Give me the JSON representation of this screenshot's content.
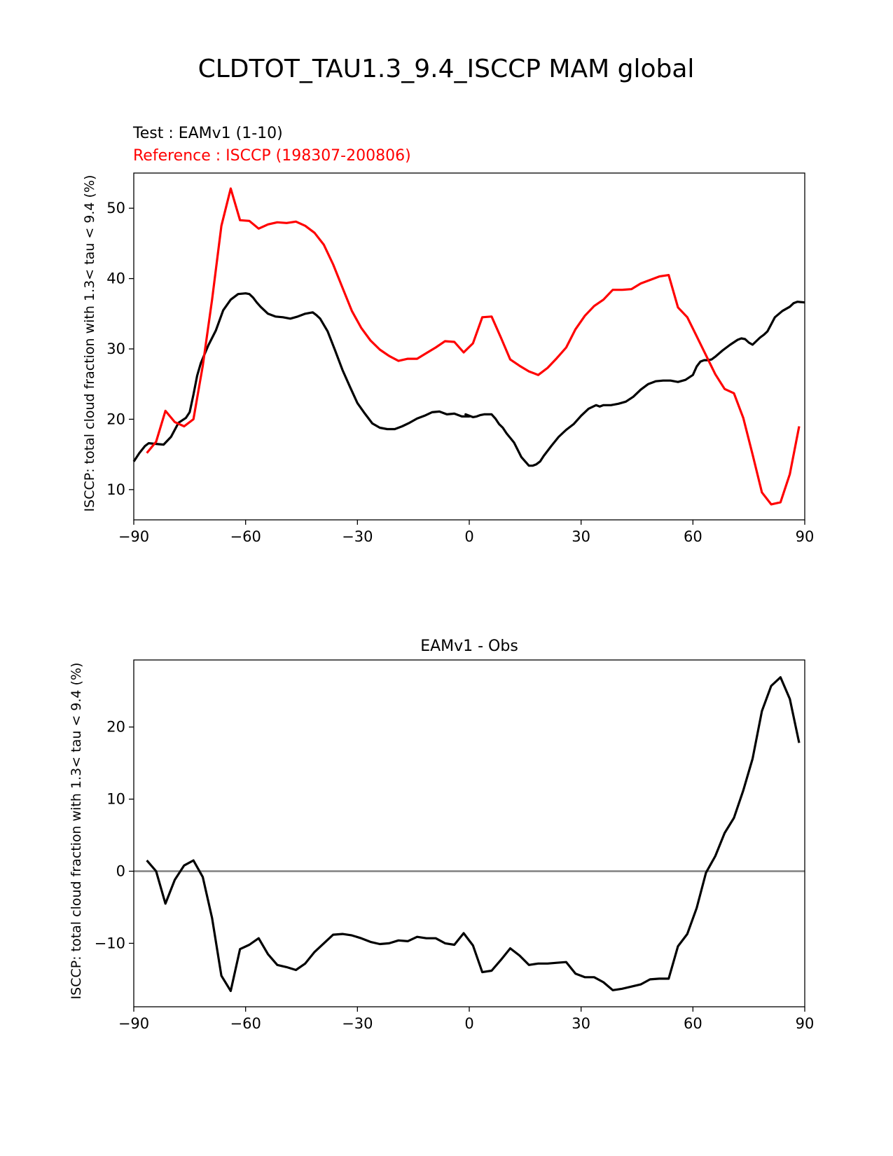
{
  "figure": {
    "title": "CLDTOT_TAU1.3_9.4_ISCCP MAM global"
  },
  "colors": {
    "test": "#000000",
    "reference": "#ff0000",
    "zero_line": "#808080",
    "axes": "#000000"
  },
  "chart_data": [
    {
      "type": "line",
      "name": "zonal-mean",
      "title": "",
      "test_label": "Test : EAMv1 (1-10)",
      "reference_label": "Reference : ISCCP (198307-200806)",
      "xlabel": "",
      "ylabel": "ISCCP: total cloud fraction with 1.3< tau < 9.4 (%)",
      "xlim": [
        -90,
        90
      ],
      "ylim": [
        5.7,
        55
      ],
      "xticks": [
        -90,
        -60,
        -30,
        0,
        30,
        60,
        90
      ],
      "xtick_labels": [
        "−90",
        "−60",
        "−30",
        "0",
        "30",
        "60",
        "90"
      ],
      "yticks": [
        10,
        20,
        30,
        40,
        50
      ],
      "ytick_labels": [
        "10",
        "20",
        "30",
        "40",
        "50"
      ],
      "series": [
        {
          "name": "EAMv1 (1-10)",
          "color": "#000000",
          "x": [
            -90,
            -88.5,
            -87,
            -86,
            -84,
            -82,
            -80,
            -78,
            -76,
            -75,
            -74,
            -73,
            -72,
            -70,
            -68,
            -66,
            -64,
            -62,
            -60,
            -59,
            -58,
            -57,
            -56,
            -54,
            -52,
            -50,
            -48,
            -46,
            -44,
            -42,
            -41,
            -40,
            -38,
            -36,
            -34,
            -32,
            -30,
            -28,
            -26,
            -24,
            -22,
            -20,
            -18,
            -16,
            -14,
            -12,
            -10,
            -8,
            -7,
            -6,
            -4,
            -2,
            0,
            -1,
            1,
            2,
            3,
            4,
            6,
            7,
            8,
            9,
            10,
            12,
            14,
            16,
            17,
            18,
            19,
            20,
            22,
            24,
            26,
            28,
            30,
            32,
            34,
            35,
            36,
            38,
            40,
            42,
            44,
            46,
            48,
            50,
            52,
            54,
            56,
            58,
            60,
            61,
            62,
            63,
            64,
            65,
            66,
            68,
            70,
            72,
            73,
            74,
            75,
            76,
            78,
            79,
            80,
            81,
            82,
            84,
            86,
            87,
            88,
            90
          ],
          "values": [
            14,
            15.2,
            16.2,
            16.6,
            16.5,
            16.4,
            17.5,
            19.5,
            20.2,
            21,
            23.5,
            26.2,
            28,
            30.5,
            32.6,
            35.5,
            37,
            37.8,
            37.9,
            37.8,
            37.3,
            36.6,
            36,
            35,
            34.6,
            34.5,
            34.3,
            34.6,
            35,
            35.2,
            34.8,
            34.3,
            32.5,
            29.8,
            27,
            24.6,
            22.3,
            20.8,
            19.4,
            18.8,
            18.6,
            18.6,
            19,
            19.5,
            20.1,
            20.5,
            21,
            21.1,
            20.9,
            20.7,
            20.8,
            20.4,
            20.4,
            20.7,
            20.3,
            20.4,
            20.6,
            20.7,
            20.7,
            20.1,
            19.3,
            18.8,
            18,
            16.7,
            14.6,
            13.4,
            13.4,
            13.6,
            14,
            14.8,
            16.2,
            17.5,
            18.5,
            19.3,
            20.5,
            21.5,
            22,
            21.8,
            22,
            22,
            22.2,
            22.5,
            23.2,
            24.2,
            25,
            25.4,
            25.5,
            25.5,
            25.3,
            25.6,
            26.3,
            27.5,
            28.2,
            28.4,
            28.4,
            28.5,
            28.9,
            29.8,
            30.6,
            31.3,
            31.5,
            31.4,
            30.9,
            30.6,
            31.6,
            32,
            32.5,
            33.5,
            34.5,
            35.4,
            36,
            36.5,
            36.7,
            36.6
          ]
        },
        {
          "name": "ISCCP (198307-200806)",
          "color": "#ff0000",
          "x": [
            -86.5,
            -84,
            -81.5,
            -79,
            -76.5,
            -74,
            -71.5,
            -69,
            -66.5,
            -64,
            -61.5,
            -59,
            -56.5,
            -54,
            -51.5,
            -49,
            -46.5,
            -44,
            -41.5,
            -39,
            -36.5,
            -34,
            -31.5,
            -29,
            -26.5,
            -24,
            -21.5,
            -19,
            -16.5,
            -14,
            -11.5,
            -9,
            -6.5,
            -4,
            -1.5,
            1,
            3.5,
            6,
            8.5,
            11,
            13.5,
            16,
            18.5,
            21,
            23.5,
            26,
            28.5,
            31,
            33.5,
            36,
            38.5,
            41,
            43.5,
            46,
            48.5,
            51,
            53.5,
            56,
            58.5,
            61,
            63.5,
            66,
            68.5,
            71,
            73.5,
            76,
            78.5,
            81,
            83.5,
            86,
            88.5
          ],
          "values": [
            15.2,
            16.8,
            21.2,
            19.6,
            19,
            20,
            27.6,
            37,
            47.5,
            52.8,
            48.3,
            48.2,
            47.1,
            47.7,
            48,
            47.9,
            48.1,
            47.5,
            46.5,
            44.8,
            42,
            38.7,
            35.4,
            33,
            31.2,
            29.9,
            29,
            28.3,
            28.6,
            28.6,
            29.4,
            30.2,
            31.1,
            31,
            29.5,
            30.8,
            34.5,
            34.6,
            31.6,
            28.5,
            27.6,
            26.8,
            26.3,
            27.3,
            28.7,
            30.2,
            32.8,
            34.7,
            36.1,
            37,
            38.4,
            38.4,
            38.5,
            39.3,
            39.8,
            40.3,
            40.5,
            35.9,
            34.5,
            31.8,
            29.1,
            26.4,
            24.3,
            23.7,
            20.2,
            15,
            9.6,
            7.9,
            8.2,
            12.2,
            19
          ]
        }
      ]
    },
    {
      "type": "line",
      "name": "difference",
      "title": "EAMv1 - Obs",
      "xlabel": "",
      "ylabel": "ISCCP: total cloud fraction with 1.3< tau < 9.4 (%)",
      "xlim": [
        -90,
        90
      ],
      "ylim": [
        -18.8,
        29.3
      ],
      "xticks": [
        -90,
        -60,
        -30,
        0,
        30,
        60,
        90
      ],
      "xtick_labels": [
        "−90",
        "−60",
        "−30",
        "0",
        "30",
        "60",
        "90"
      ],
      "yticks": [
        -10,
        0,
        10,
        20
      ],
      "ytick_labels": [
        "−10",
        "0",
        "10",
        "20"
      ],
      "zero_line": true,
      "series": [
        {
          "name": "EAMv1 - Obs",
          "color": "#000000",
          "x": [
            -86.5,
            -84,
            -81.5,
            -79,
            -76.5,
            -74,
            -71.5,
            -69,
            -66.5,
            -64,
            -61.5,
            -59,
            -56.5,
            -54,
            -51.5,
            -49,
            -46.5,
            -44,
            -41.5,
            -39,
            -36.5,
            -34,
            -31.5,
            -29,
            -26.5,
            -24,
            -21.5,
            -19,
            -16.5,
            -14,
            -11.5,
            -9,
            -6.5,
            -4,
            -1.5,
            1,
            3.5,
            6,
            8.5,
            11,
            13.5,
            16,
            18.5,
            21,
            23.5,
            26,
            28.5,
            31,
            33.5,
            36,
            38.5,
            41,
            43.5,
            46,
            48.5,
            51,
            53.5,
            56,
            58.5,
            61,
            63.5,
            66,
            68.5,
            71,
            73.5,
            76,
            78.5,
            81,
            83.5,
            86,
            88.5
          ],
          "values": [
            1.5,
            0,
            -4.5,
            -1.2,
            0.8,
            1.5,
            -0.8,
            -6.5,
            -14.5,
            -16.6,
            -10.8,
            -10.2,
            -9.3,
            -11.5,
            -13,
            -13.3,
            -13.7,
            -12.8,
            -11.2,
            -10,
            -8.8,
            -8.7,
            -8.9,
            -9.3,
            -9.8,
            -10.1,
            -10,
            -9.6,
            -9.7,
            -9.1,
            -9.3,
            -9.3,
            -10,
            -10.2,
            -8.6,
            -10.3,
            -14,
            -13.8,
            -12.3,
            -10.7,
            -11.7,
            -13,
            -12.8,
            -12.8,
            -12.7,
            -12.6,
            -14.2,
            -14.7,
            -14.7,
            -15.4,
            -16.5,
            -16.3,
            -16,
            -15.7,
            -15,
            -14.9,
            -14.9,
            -10.4,
            -8.7,
            -5.1,
            -0.2,
            2.1,
            5.3,
            7.4,
            11.2,
            15.6,
            22.2,
            25.7,
            26.9,
            23.9,
            17.8
          ]
        }
      ]
    }
  ]
}
